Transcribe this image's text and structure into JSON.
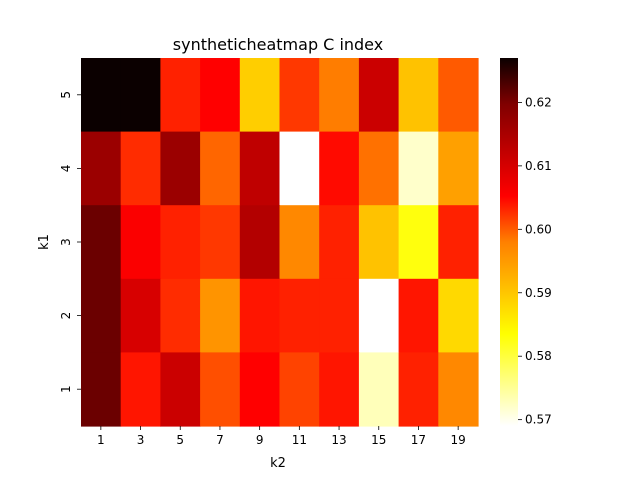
{
  "chart_data": {
    "type": "heatmap",
    "title": "syntheticheatmap C index",
    "xlabel": "k2",
    "ylabel": "k1",
    "x": [
      "1",
      "3",
      "5",
      "7",
      "9",
      "11",
      "13",
      "15",
      "17",
      "19"
    ],
    "y": [
      "5",
      "4",
      "3",
      "2",
      "1"
    ],
    "values": [
      [
        0.627,
        0.627,
        0.603,
        0.606,
        0.588,
        0.601,
        0.595,
        0.611,
        0.589,
        0.598
      ],
      [
        0.615,
        0.602,
        0.615,
        0.597,
        0.612,
        0.569,
        0.605,
        0.596,
        0.572,
        0.592
      ],
      [
        0.619,
        0.607,
        0.603,
        0.601,
        0.613,
        0.594,
        0.603,
        0.589,
        0.583,
        0.603
      ],
      [
        0.619,
        0.61,
        0.602,
        0.593,
        0.604,
        0.603,
        0.603,
        0.569,
        0.604,
        0.587
      ],
      [
        0.619,
        0.604,
        0.611,
        0.599,
        0.606,
        0.6,
        0.604,
        0.573,
        0.603,
        0.594
      ]
    ],
    "colorbar": {
      "colormap": "hot_r",
      "vmin": 0.569,
      "vmax": 0.627,
      "ticks": [
        0.57,
        0.58,
        0.59,
        0.6,
        0.61,
        0.62
      ],
      "tick_labels": [
        "0.57",
        "0.58",
        "0.59",
        "0.60",
        "0.61",
        "0.62"
      ]
    },
    "grid": false,
    "legend": "colorbar-right"
  }
}
